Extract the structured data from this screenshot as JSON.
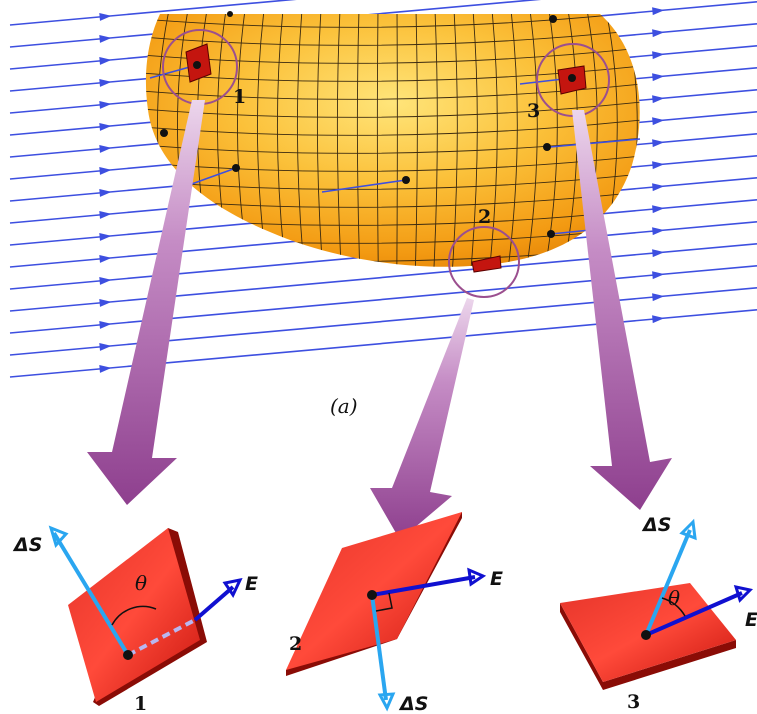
{
  "figure": {
    "caption": "(a)",
    "surface_patches": [
      {
        "number": "1"
      },
      {
        "number": "2"
      },
      {
        "number": "3"
      }
    ],
    "enlarged_patches": [
      {
        "number": "1",
        "normal_label": "ΔS",
        "field_label": "E",
        "angle_label": "θ"
      },
      {
        "number": "2",
        "normal_label": "ΔS",
        "field_label": "E",
        "angle_label": ""
      },
      {
        "number": "3",
        "normal_label": "ΔS",
        "field_label": "E",
        "angle_label": "θ"
      }
    ]
  },
  "colors": {
    "field_lines": "#3d4fe0",
    "surface_fill": "#f6a21a",
    "surface_highlight": "#ffe07a",
    "patch": "#d01a12",
    "pointer_arrow": "#9a4a9a",
    "normal_vector": "#2aa6f0",
    "field_vector": "#1010d0",
    "circle": "#9b4f8f"
  }
}
